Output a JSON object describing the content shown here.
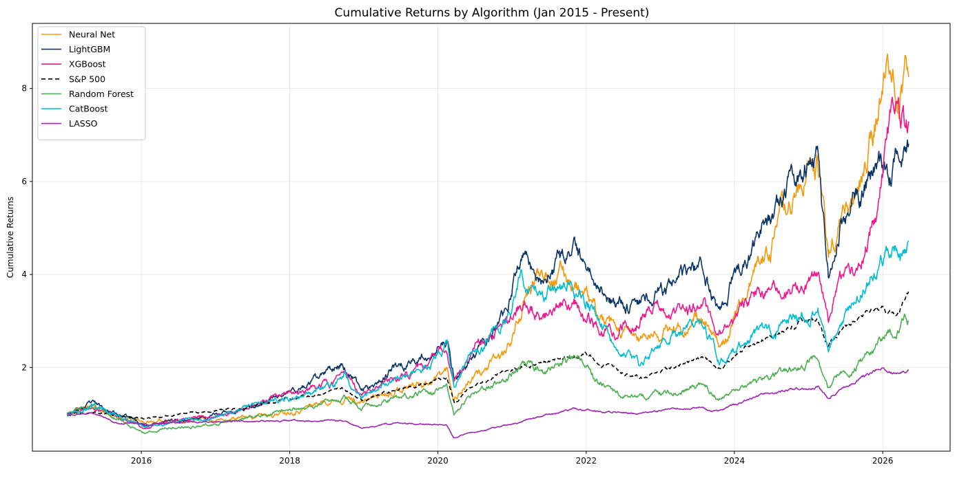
{
  "chart_data": {
    "type": "line",
    "title": "Cumulative Returns by Algorithm (Jan 2015 - Present)",
    "xlabel": "",
    "ylabel": "Cumulative Returns",
    "xlim": [
      "2014-07-13",
      "2026-11-29"
    ],
    "ylim": [
      0.2,
      9.4
    ],
    "x_ticks": [
      "2016",
      "2018",
      "2020",
      "2022",
      "2024",
      "2026"
    ],
    "y_ticks": [
      "2",
      "4",
      "6",
      "8"
    ],
    "grid": true,
    "legend_position": "top-left",
    "series": [
      {
        "name": "Neural Net",
        "color": "#f5980a",
        "dash": "solid",
        "seed": 11,
        "noise": 0.03,
        "points": [
          [
            "2015-01-01",
            1.0
          ],
          [
            "2015-05-01",
            1.18
          ],
          [
            "2015-08-15",
            0.95
          ],
          [
            "2016-01-15",
            0.82
          ],
          [
            "2016-06-01",
            0.85
          ],
          [
            "2016-12-01",
            0.88
          ],
          [
            "2017-06-01",
            0.92
          ],
          [
            "2017-12-01",
            1.05
          ],
          [
            "2018-06-01",
            1.25
          ],
          [
            "2018-10-01",
            1.4
          ],
          [
            "2018-12-20",
            1.25
          ],
          [
            "2019-06-01",
            1.55
          ],
          [
            "2019-12-01",
            1.75
          ],
          [
            "2020-02-15",
            1.95
          ],
          [
            "2020-03-20",
            1.35
          ],
          [
            "2020-06-01",
            1.7
          ],
          [
            "2020-12-01",
            2.3
          ],
          [
            "2021-02-15",
            3.2
          ],
          [
            "2021-06-01",
            4.2
          ],
          [
            "2021-10-01",
            4.0
          ],
          [
            "2021-12-01",
            3.7
          ],
          [
            "2022-03-01",
            3.1
          ],
          [
            "2022-06-01",
            2.7
          ],
          [
            "2022-10-01",
            2.6
          ],
          [
            "2023-03-01",
            2.8
          ],
          [
            "2023-07-01",
            3.1
          ],
          [
            "2023-10-15",
            2.4
          ],
          [
            "2024-01-01",
            3.1
          ],
          [
            "2024-04-01",
            4.0
          ],
          [
            "2024-07-01",
            4.7
          ],
          [
            "2024-12-01",
            6.0
          ],
          [
            "2025-02-15",
            6.3
          ],
          [
            "2025-04-08",
            4.4
          ],
          [
            "2025-06-01",
            5.2
          ],
          [
            "2025-09-01",
            5.8
          ],
          [
            "2025-12-01",
            7.4
          ],
          [
            "2026-02-15",
            8.7
          ],
          [
            "2026-03-15",
            7.6
          ],
          [
            "2026-05-10",
            8.3
          ]
        ]
      },
      {
        "name": "LightGBM",
        "color": "#0b3466",
        "dash": "solid",
        "seed": 23,
        "noise": 0.028,
        "points": [
          [
            "2015-01-01",
            1.0
          ],
          [
            "2015-05-01",
            1.2
          ],
          [
            "2015-08-15",
            1.05
          ],
          [
            "2016-01-15",
            0.78
          ],
          [
            "2016-06-01",
            0.85
          ],
          [
            "2016-12-01",
            0.95
          ],
          [
            "2017-06-01",
            1.15
          ],
          [
            "2017-12-01",
            1.4
          ],
          [
            "2018-06-01",
            1.75
          ],
          [
            "2018-09-15",
            2.1
          ],
          [
            "2018-12-20",
            1.5
          ],
          [
            "2019-06-01",
            2.0
          ],
          [
            "2019-12-01",
            2.3
          ],
          [
            "2020-02-15",
            2.5
          ],
          [
            "2020-03-20",
            1.8
          ],
          [
            "2020-06-01",
            2.1
          ],
          [
            "2020-12-01",
            3.0
          ],
          [
            "2021-02-15",
            4.5
          ],
          [
            "2021-06-01",
            3.9
          ],
          [
            "2021-11-01",
            4.4
          ],
          [
            "2022-03-01",
            3.9
          ],
          [
            "2022-06-01",
            3.3
          ],
          [
            "2022-10-01",
            3.5
          ],
          [
            "2023-03-01",
            3.7
          ],
          [
            "2023-08-01",
            4.1
          ],
          [
            "2023-10-15",
            3.2
          ],
          [
            "2024-01-01",
            4.0
          ],
          [
            "2024-05-01",
            4.8
          ],
          [
            "2024-09-01",
            5.5
          ],
          [
            "2025-02-15",
            6.9
          ],
          [
            "2025-04-08",
            4.0
          ],
          [
            "2025-06-01",
            5.2
          ],
          [
            "2025-09-01",
            5.6
          ],
          [
            "2025-12-01",
            6.4
          ],
          [
            "2026-02-01",
            6.2
          ],
          [
            "2026-05-10",
            7.1
          ]
        ]
      },
      {
        "name": "XGBoost",
        "color": "#f0188c",
        "dash": "solid",
        "seed": 37,
        "noise": 0.028,
        "points": [
          [
            "2015-01-01",
            1.0
          ],
          [
            "2015-05-01",
            1.12
          ],
          [
            "2015-08-15",
            1.0
          ],
          [
            "2016-01-15",
            0.75
          ],
          [
            "2016-06-01",
            0.82
          ],
          [
            "2016-12-01",
            0.95
          ],
          [
            "2017-06-01",
            1.15
          ],
          [
            "2017-12-01",
            1.35
          ],
          [
            "2018-06-01",
            1.6
          ],
          [
            "2018-10-01",
            1.85
          ],
          [
            "2018-12-20",
            1.35
          ],
          [
            "2019-06-01",
            1.75
          ],
          [
            "2019-12-01",
            2.1
          ],
          [
            "2020-02-15",
            2.4
          ],
          [
            "2020-03-20",
            1.7
          ],
          [
            "2020-06-01",
            2.3
          ],
          [
            "2020-12-01",
            2.9
          ],
          [
            "2021-02-15",
            3.4
          ],
          [
            "2021-06-01",
            3.1
          ],
          [
            "2021-11-01",
            3.4
          ],
          [
            "2022-03-01",
            2.9
          ],
          [
            "2022-06-01",
            2.7
          ],
          [
            "2022-12-01",
            3.3
          ],
          [
            "2023-05-01",
            3.1
          ],
          [
            "2023-08-01",
            3.4
          ],
          [
            "2023-10-15",
            2.6
          ],
          [
            "2024-01-01",
            3.2
          ],
          [
            "2024-05-01",
            3.5
          ],
          [
            "2024-09-01",
            3.7
          ],
          [
            "2025-02-15",
            4.0
          ],
          [
            "2025-04-08",
            3.0
          ],
          [
            "2025-06-01",
            3.8
          ],
          [
            "2025-09-01",
            4.1
          ],
          [
            "2025-12-01",
            5.4
          ],
          [
            "2026-03-01",
            7.5
          ],
          [
            "2026-05-10",
            7.2
          ]
        ]
      },
      {
        "name": "S&P 500",
        "color": "#000000",
        "dash": "6,4",
        "seed": 41,
        "noise": 0.012,
        "points": [
          [
            "2015-01-01",
            1.0
          ],
          [
            "2015-06-01",
            1.05
          ],
          [
            "2015-09-01",
            0.95
          ],
          [
            "2016-02-01",
            0.9
          ],
          [
            "2016-07-01",
            1.0
          ],
          [
            "2016-12-01",
            1.05
          ],
          [
            "2017-06-01",
            1.15
          ],
          [
            "2017-12-01",
            1.3
          ],
          [
            "2018-06-01",
            1.4
          ],
          [
            "2018-09-15",
            1.55
          ],
          [
            "2018-12-24",
            1.3
          ],
          [
            "2019-06-01",
            1.5
          ],
          [
            "2019-12-01",
            1.7
          ],
          [
            "2020-02-15",
            1.8
          ],
          [
            "2020-03-23",
            1.2
          ],
          [
            "2020-06-01",
            1.55
          ],
          [
            "2020-12-01",
            1.9
          ],
          [
            "2021-06-01",
            2.1
          ],
          [
            "2021-12-31",
            2.3
          ],
          [
            "2022-06-15",
            1.9
          ],
          [
            "2022-10-12",
            1.75
          ],
          [
            "2023-03-01",
            2.0
          ],
          [
            "2023-07-31",
            2.2
          ],
          [
            "2023-10-27",
            2.0
          ],
          [
            "2024-03-01",
            2.45
          ],
          [
            "2024-07-15",
            2.7
          ],
          [
            "2024-12-01",
            2.95
          ],
          [
            "2025-02-15",
            3.0
          ],
          [
            "2025-04-08",
            2.5
          ],
          [
            "2025-07-01",
            2.95
          ],
          [
            "2025-10-01",
            3.2
          ],
          [
            "2026-01-01",
            3.3
          ],
          [
            "2026-03-15",
            3.1
          ],
          [
            "2026-05-10",
            3.6
          ]
        ]
      },
      {
        "name": "Random Forest",
        "color": "#4caf50",
        "dash": "solid",
        "seed": 53,
        "noise": 0.025,
        "points": [
          [
            "2015-01-01",
            1.0
          ],
          [
            "2015-05-01",
            1.15
          ],
          [
            "2015-08-15",
            0.95
          ],
          [
            "2016-01-15",
            0.62
          ],
          [
            "2016-06-01",
            0.7
          ],
          [
            "2016-12-01",
            0.78
          ],
          [
            "2017-06-01",
            0.9
          ],
          [
            "2017-12-01",
            1.05
          ],
          [
            "2018-06-01",
            1.2
          ],
          [
            "2018-10-01",
            1.4
          ],
          [
            "2018-12-20",
            1.1
          ],
          [
            "2019-06-01",
            1.35
          ],
          [
            "2019-12-01",
            1.5
          ],
          [
            "2020-02-15",
            1.55
          ],
          [
            "2020-03-20",
            0.95
          ],
          [
            "2020-06-01",
            1.4
          ],
          [
            "2020-12-01",
            1.8
          ],
          [
            "2021-02-15",
            2.1
          ],
          [
            "2021-06-01",
            1.9
          ],
          [
            "2021-11-20",
            2.2
          ],
          [
            "2022-03-01",
            1.7
          ],
          [
            "2022-06-01",
            1.4
          ],
          [
            "2022-10-01",
            1.35
          ],
          [
            "2023-03-01",
            1.5
          ],
          [
            "2023-08-01",
            1.6
          ],
          [
            "2023-10-15",
            1.3
          ],
          [
            "2024-03-01",
            1.55
          ],
          [
            "2024-07-01",
            1.8
          ],
          [
            "2025-02-15",
            2.2
          ],
          [
            "2025-04-08",
            1.6
          ],
          [
            "2025-07-01",
            1.9
          ],
          [
            "2025-10-01",
            2.2
          ],
          [
            "2026-01-01",
            2.6
          ],
          [
            "2026-05-10",
            3.1
          ]
        ]
      },
      {
        "name": "CatBoost",
        "color": "#00bcd4",
        "dash": "solid",
        "seed": 67,
        "noise": 0.027,
        "points": [
          [
            "2015-01-01",
            1.0
          ],
          [
            "2015-05-01",
            1.15
          ],
          [
            "2015-08-15",
            1.0
          ],
          [
            "2016-01-15",
            0.75
          ],
          [
            "2016-06-01",
            0.82
          ],
          [
            "2016-12-01",
            0.92
          ],
          [
            "2017-06-01",
            1.1
          ],
          [
            "2017-12-01",
            1.3
          ],
          [
            "2018-06-01",
            1.5
          ],
          [
            "2018-10-01",
            1.8
          ],
          [
            "2018-12-20",
            1.35
          ],
          [
            "2019-06-01",
            1.75
          ],
          [
            "2019-12-01",
            2.1
          ],
          [
            "2020-02-15",
            2.5
          ],
          [
            "2020-03-20",
            1.7
          ],
          [
            "2020-06-01",
            2.2
          ],
          [
            "2020-12-01",
            3.0
          ],
          [
            "2021-02-15",
            4.2
          ],
          [
            "2021-06-01",
            3.5
          ],
          [
            "2021-11-01",
            3.8
          ],
          [
            "2022-03-01",
            3.1
          ],
          [
            "2022-06-01",
            2.4
          ],
          [
            "2022-10-01",
            2.0
          ],
          [
            "2023-03-01",
            2.7
          ],
          [
            "2023-08-01",
            2.9
          ],
          [
            "2023-10-15",
            2.2
          ],
          [
            "2024-03-01",
            2.6
          ],
          [
            "2024-07-01",
            2.8
          ],
          [
            "2025-02-15",
            3.3
          ],
          [
            "2025-04-08",
            2.4
          ],
          [
            "2025-07-01",
            3.2
          ],
          [
            "2025-10-01",
            3.6
          ],
          [
            "2026-01-01",
            4.3
          ],
          [
            "2026-03-15",
            4.6
          ],
          [
            "2026-05-10",
            4.6
          ]
        ]
      },
      {
        "name": "LASSO",
        "color": "#9c27b0",
        "dash": "solid",
        "seed": 79,
        "noise": 0.012,
        "points": [
          [
            "2015-01-01",
            1.0
          ],
          [
            "2015-06-01",
            1.0
          ],
          [
            "2015-09-01",
            0.82
          ],
          [
            "2016-02-01",
            0.78
          ],
          [
            "2016-07-01",
            0.82
          ],
          [
            "2016-12-01",
            0.82
          ],
          [
            "2017-06-01",
            0.85
          ],
          [
            "2017-12-01",
            0.85
          ],
          [
            "2018-06-01",
            0.85
          ],
          [
            "2018-10-01",
            0.85
          ],
          [
            "2018-12-20",
            0.7
          ],
          [
            "2019-06-01",
            0.8
          ],
          [
            "2019-12-01",
            0.78
          ],
          [
            "2020-02-15",
            0.75
          ],
          [
            "2020-03-20",
            0.48
          ],
          [
            "2020-06-01",
            0.6
          ],
          [
            "2020-12-01",
            0.75
          ],
          [
            "2021-06-01",
            0.95
          ],
          [
            "2021-11-01",
            1.1
          ],
          [
            "2022-06-01",
            1.05
          ],
          [
            "2022-10-01",
            1.0
          ],
          [
            "2023-03-01",
            1.1
          ],
          [
            "2023-08-01",
            1.15
          ],
          [
            "2023-10-15",
            1.05
          ],
          [
            "2024-03-01",
            1.3
          ],
          [
            "2024-07-01",
            1.45
          ],
          [
            "2025-02-15",
            1.6
          ],
          [
            "2025-04-08",
            1.35
          ],
          [
            "2025-07-01",
            1.6
          ],
          [
            "2025-10-01",
            1.8
          ],
          [
            "2026-01-01",
            1.95
          ],
          [
            "2026-03-15",
            1.9
          ],
          [
            "2026-05-10",
            1.95
          ]
        ]
      }
    ]
  }
}
